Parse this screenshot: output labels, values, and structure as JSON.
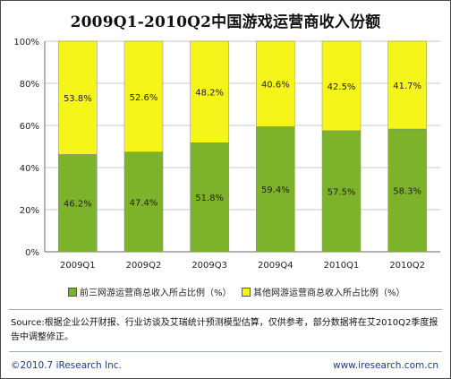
{
  "title": "2009Q1-2010Q2中国游戏运营商收入份额",
  "colors": {
    "bottom": "#7db32a",
    "top": "#f5f51a",
    "grid": "#c8c8c8"
  },
  "chart_data": {
    "type": "bar",
    "stacked": "percent",
    "categories": [
      "2009Q1",
      "2009Q2",
      "2009Q3",
      "2009Q4",
      "2010Q1",
      "2010Q2"
    ],
    "series": [
      {
        "name": "前三网游运营商总收入所占比例（%）",
        "values": [
          46.2,
          47.4,
          51.8,
          59.4,
          57.5,
          58.3
        ],
        "labels": [
          "46.2%",
          "47.4%",
          "51.8%",
          "59.4%",
          "57.5%",
          "58.3%"
        ]
      },
      {
        "name": "其他网游运营商总收入所占比例（%）",
        "values": [
          53.8,
          52.6,
          48.2,
          40.6,
          42.5,
          41.7
        ],
        "labels": [
          "53.8%",
          "52.6%",
          "48.2%",
          "40.6%",
          "42.5%",
          "41.7%"
        ]
      }
    ],
    "yticks": [
      "0%",
      "20%",
      "40%",
      "60%",
      "80%",
      "100%"
    ],
    "ylim": [
      0,
      100
    ],
    "grid": true,
    "legend": "bottom"
  },
  "source_text": "Source:根据企业公开财报、行业访谈及艾瑞统计预测模型估算，仅供参考，部分数据将在艾2010Q2季度报告中调整修正。",
  "footer": {
    "left": "©2010.7 iResearch Inc.",
    "right": "www.iresearch.com.cn"
  }
}
